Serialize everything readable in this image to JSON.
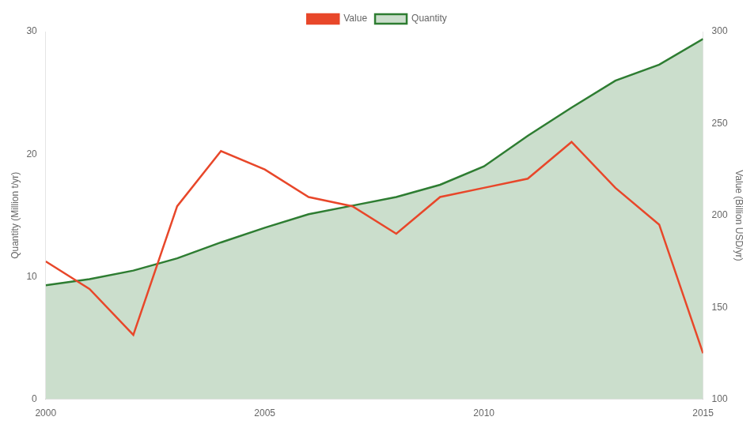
{
  "chart_data": {
    "type": "line",
    "x": [
      2000,
      2001,
      2002,
      2003,
      2004,
      2005,
      2006,
      2007,
      2008,
      2009,
      2010,
      2011,
      2012,
      2013,
      2014,
      2015
    ],
    "series": [
      {
        "name": "Value",
        "color": "#e8472a",
        "axis": "y2",
        "values": [
          175,
          160,
          135,
          205,
          235,
          225,
          210,
          205,
          190,
          210,
          215,
          220,
          240,
          215,
          195,
          125
        ]
      },
      {
        "name": "Quantity",
        "color": "#2e7d32",
        "type": "area",
        "values": [
          9.3,
          9.8,
          10.5,
          11.5,
          12.8,
          14.0,
          15.1,
          15.8,
          16.5,
          17.5,
          19.0,
          21.5,
          23.8,
          26.0,
          27.3,
          29.4
        ]
      }
    ],
    "ylabel": "Quantity (Million t/yr)",
    "y2label": "Value (Billion USD/yr)",
    "xlim": [
      2000,
      2015
    ],
    "xticks": [
      2000,
      2005,
      2010,
      2015
    ],
    "ylim": [
      0,
      30
    ],
    "yticks": [
      0,
      10,
      20,
      30
    ],
    "y2lim": [
      100,
      300
    ],
    "y2ticks": [
      100,
      150,
      200,
      250,
      300
    ],
    "grid": false,
    "legend": "upper center"
  }
}
